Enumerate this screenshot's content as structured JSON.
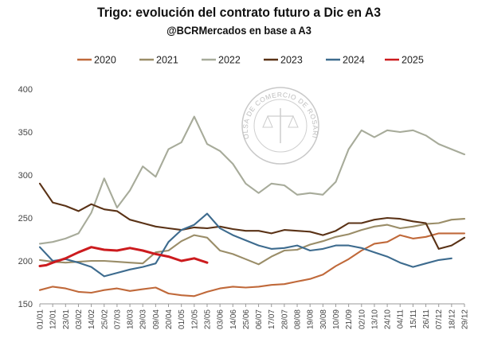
{
  "title": "Trigo: evolución del contrato futuro a Dic en A3",
  "subtitle": "@BCRMercados en base a A3",
  "watermark": "BOLSA DE COMERCIO DE ROSARIO",
  "chart_data": {
    "type": "line",
    "title": "Trigo: evolución del contrato futuro a Dic en A3",
    "subtitle": "@BCRMercados en base a A3",
    "ylim": [
      150,
      400
    ],
    "yticks": [
      150,
      200,
      250,
      300,
      350,
      400
    ],
    "grid": false,
    "legend_position": "top",
    "x_categories": [
      "01/01",
      "12/01",
      "23/01",
      "03/02",
      "14/02",
      "25/02",
      "07/03",
      "18/03",
      "29/03",
      "09/04",
      "20/04",
      "01/05",
      "12/05",
      "23/05",
      "03/06",
      "14/06",
      "25/06",
      "06/07",
      "17/07",
      "28/07",
      "08/08",
      "19/08",
      "30/08",
      "10/09",
      "21/09",
      "02/10",
      "13/10",
      "24/10",
      "04/11",
      "15/11",
      "26/11",
      "07/12",
      "18/12",
      "29/12"
    ],
    "series": [
      {
        "name": "2020",
        "color": "#c0693a",
        "points": [
          [
            0,
            166
          ],
          [
            1,
            170
          ],
          [
            2,
            168
          ],
          [
            3,
            164
          ],
          [
            4,
            163
          ],
          [
            5,
            166
          ],
          [
            6,
            168
          ],
          [
            7,
            165
          ],
          [
            8,
            167
          ],
          [
            9,
            169
          ],
          [
            10,
            162
          ],
          [
            11,
            160
          ],
          [
            12,
            159
          ],
          [
            13,
            164
          ],
          [
            14,
            168
          ],
          [
            15,
            170
          ],
          [
            16,
            169
          ],
          [
            17,
            170
          ],
          [
            18,
            172
          ],
          [
            19,
            173
          ],
          [
            20,
            176
          ],
          [
            21,
            179
          ],
          [
            22,
            184
          ],
          [
            23,
            194
          ],
          [
            24,
            202
          ],
          [
            25,
            212
          ],
          [
            26,
            220
          ],
          [
            27,
            222
          ],
          [
            28,
            230
          ],
          [
            29,
            226
          ],
          [
            30,
            228
          ],
          [
            31,
            232
          ],
          [
            32,
            232
          ],
          [
            33,
            232
          ]
        ]
      },
      {
        "name": "2021",
        "color": "#9a8d68",
        "points": [
          [
            0,
            201
          ],
          [
            1,
            199
          ],
          [
            2,
            198
          ],
          [
            3,
            199
          ],
          [
            4,
            200
          ],
          [
            5,
            200
          ],
          [
            6,
            199
          ],
          [
            7,
            198
          ],
          [
            8,
            197
          ],
          [
            9,
            210
          ],
          [
            10,
            212
          ],
          [
            11,
            223
          ],
          [
            12,
            230
          ],
          [
            13,
            227
          ],
          [
            14,
            212
          ],
          [
            15,
            208
          ],
          [
            16,
            202
          ],
          [
            17,
            196
          ],
          [
            18,
            205
          ],
          [
            19,
            212
          ],
          [
            20,
            213
          ],
          [
            21,
            219
          ],
          [
            22,
            223
          ],
          [
            23,
            228
          ],
          [
            24,
            231
          ],
          [
            25,
            236
          ],
          [
            26,
            240
          ],
          [
            27,
            242
          ],
          [
            28,
            238
          ],
          [
            29,
            240
          ],
          [
            30,
            243
          ],
          [
            31,
            244
          ],
          [
            32,
            248
          ],
          [
            33,
            249
          ]
        ]
      },
      {
        "name": "2022",
        "color": "#a7ab9a",
        "points": [
          [
            0,
            220
          ],
          [
            1,
            222
          ],
          [
            2,
            226
          ],
          [
            3,
            232
          ],
          [
            4,
            256
          ],
          [
            5,
            296
          ],
          [
            6,
            262
          ],
          [
            7,
            282
          ],
          [
            8,
            310
          ],
          [
            9,
            298
          ],
          [
            10,
            330
          ],
          [
            11,
            338
          ],
          [
            12,
            368
          ],
          [
            13,
            336
          ],
          [
            14,
            328
          ],
          [
            15,
            313
          ],
          [
            16,
            290
          ],
          [
            17,
            279
          ],
          [
            18,
            290
          ],
          [
            19,
            288
          ],
          [
            20,
            277
          ],
          [
            21,
            279
          ],
          [
            22,
            277
          ],
          [
            23,
            292
          ],
          [
            24,
            330
          ],
          [
            25,
            352
          ],
          [
            26,
            344
          ],
          [
            27,
            352
          ],
          [
            28,
            350
          ],
          [
            29,
            352
          ],
          [
            30,
            346
          ],
          [
            31,
            336
          ],
          [
            32,
            330
          ],
          [
            33,
            324
          ]
        ]
      },
      {
        "name": "2023",
        "color": "#5a3216",
        "points": [
          [
            0,
            290
          ],
          [
            1,
            268
          ],
          [
            2,
            264
          ],
          [
            3,
            258
          ],
          [
            4,
            266
          ],
          [
            5,
            260
          ],
          [
            6,
            258
          ],
          [
            7,
            248
          ],
          [
            8,
            244
          ],
          [
            9,
            240
          ],
          [
            10,
            238
          ],
          [
            11,
            236
          ],
          [
            12,
            239
          ],
          [
            13,
            238
          ],
          [
            14,
            240
          ],
          [
            15,
            237
          ],
          [
            16,
            235
          ],
          [
            17,
            235
          ],
          [
            18,
            232
          ],
          [
            19,
            236
          ],
          [
            20,
            235
          ],
          [
            21,
            234
          ],
          [
            22,
            230
          ],
          [
            23,
            235
          ],
          [
            24,
            244
          ],
          [
            25,
            244
          ],
          [
            26,
            248
          ],
          [
            27,
            250
          ],
          [
            28,
            249
          ],
          [
            29,
            246
          ],
          [
            30,
            244
          ],
          [
            31,
            214
          ],
          [
            32,
            218
          ],
          [
            33,
            227
          ]
        ]
      },
      {
        "name": "2024",
        "color": "#3d6b8e",
        "points": [
          [
            0,
            216
          ],
          [
            1,
            200
          ],
          [
            2,
            202
          ],
          [
            3,
            198
          ],
          [
            4,
            193
          ],
          [
            5,
            182
          ],
          [
            6,
            186
          ],
          [
            7,
            190
          ],
          [
            8,
            193
          ],
          [
            9,
            197
          ],
          [
            10,
            222
          ],
          [
            11,
            236
          ],
          [
            12,
            242
          ],
          [
            13,
            255
          ],
          [
            14,
            238
          ],
          [
            15,
            230
          ],
          [
            16,
            224
          ],
          [
            17,
            218
          ],
          [
            18,
            214
          ],
          [
            19,
            215
          ],
          [
            20,
            218
          ],
          [
            21,
            212
          ],
          [
            22,
            214
          ],
          [
            23,
            218
          ],
          [
            24,
            218
          ],
          [
            25,
            215
          ],
          [
            26,
            210
          ],
          [
            27,
            205
          ],
          [
            28,
            198
          ],
          [
            29,
            193
          ],
          [
            30,
            197
          ],
          [
            31,
            201
          ],
          [
            32,
            203
          ]
        ]
      },
      {
        "name": "2025",
        "color": "#cc1b1e",
        "points": [
          [
            0,
            194
          ],
          [
            0.5,
            195
          ],
          [
            1,
            198
          ],
          [
            2,
            203
          ],
          [
            3,
            210
          ],
          [
            4,
            216
          ],
          [
            5,
            213
          ],
          [
            6,
            212
          ],
          [
            7,
            215
          ],
          [
            8,
            212
          ],
          [
            9,
            208
          ],
          [
            10,
            205
          ],
          [
            11,
            200
          ],
          [
            12,
            203
          ],
          [
            13,
            198
          ]
        ]
      }
    ]
  }
}
